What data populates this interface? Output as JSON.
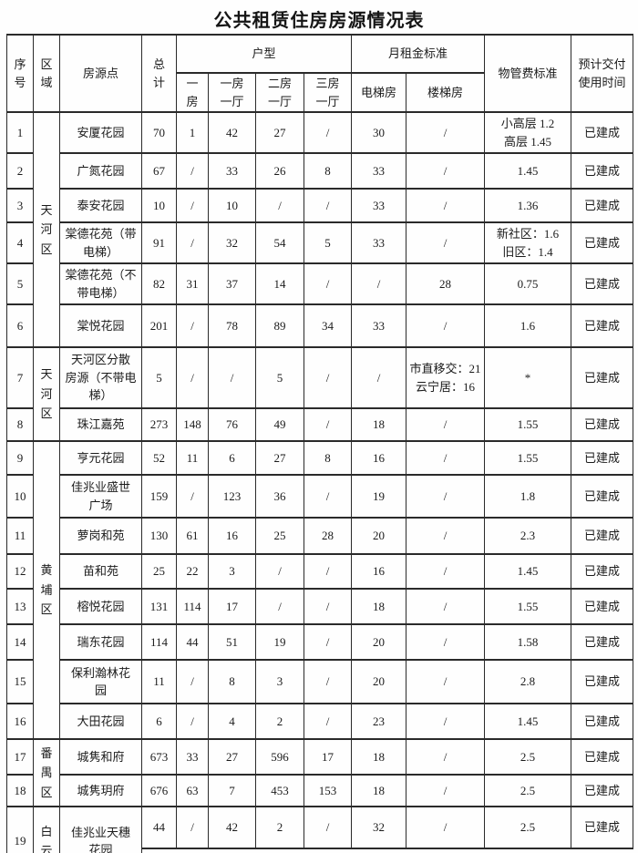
{
  "title": "公共租赁住房房源情况表",
  "table": {
    "headers": {
      "no": "序\n号",
      "district": "区\n域",
      "site": "房源点",
      "total": "总\n计",
      "unit_group": "户型",
      "unit_types": [
        "一\n房",
        "一房\n一厅",
        "二房\n一厅",
        "三房\n一厅"
      ],
      "rent_group": "月租金标准",
      "rent_types": [
        "电梯房",
        "楼梯房"
      ],
      "mgmt": "物管费标准",
      "delivery": "预计交付\n使用时间"
    },
    "district_blocks": [
      {
        "label": "天河区",
        "start": 0,
        "span": 6
      },
      {
        "label": "天河区",
        "start": 6,
        "span": 2
      },
      {
        "label": "黄埔区",
        "start": 8,
        "span": 8
      },
      {
        "label": "番禺区",
        "start": 16,
        "span": 2
      },
      {
        "label": "白云",
        "start": 18,
        "span": 1
      }
    ],
    "rows": [
      {
        "no": "1",
        "site": "安厦花园",
        "total": "70",
        "u1": "1",
        "u2": "42",
        "u3": "27",
        "u4": "/",
        "elev": "30",
        "stair": "/",
        "mgmt": "小高层 1.2\n高层 1.45",
        "delivery": "已建成"
      },
      {
        "no": "2",
        "site": "广氮花园",
        "total": "67",
        "u1": "/",
        "u2": "33",
        "u3": "26",
        "u4": "8",
        "elev": "33",
        "stair": "/",
        "mgmt": "1.45",
        "delivery": "已建成"
      },
      {
        "no": "3",
        "site": "泰安花园",
        "total": "10",
        "u1": "/",
        "u2": "10",
        "u3": "/",
        "u4": "/",
        "elev": "33",
        "stair": "/",
        "mgmt": "1.36",
        "delivery": "已建成"
      },
      {
        "no": "4",
        "site": "棠德花苑（带\n电梯）",
        "total": "91",
        "u1": "/",
        "u2": "32",
        "u3": "54",
        "u4": "5",
        "elev": "33",
        "stair": "/",
        "mgmt": "新社区：1.6\n旧区：1.4",
        "delivery": "已建成"
      },
      {
        "no": "5",
        "site": "棠德花苑（不\n带电梯）",
        "total": "82",
        "u1": "31",
        "u2": "37",
        "u3": "14",
        "u4": "/",
        "elev": "/",
        "stair": "28",
        "mgmt": "0.75",
        "delivery": "已建成"
      },
      {
        "no": "6",
        "site": "棠悦花园",
        "total": "201",
        "u1": "/",
        "u2": "78",
        "u3": "89",
        "u4": "34",
        "elev": "33",
        "stair": "/",
        "mgmt": "1.6",
        "delivery": "已建成"
      },
      {
        "no": "7",
        "site": "天河区分散\n房源（不带电\n梯）",
        "total": "5",
        "u1": "/",
        "u2": "/",
        "u3": "5",
        "u4": "/",
        "elev": "/",
        "stair": "市直移交：21\n云宁居：16",
        "mgmt": "*",
        "delivery": "已建成"
      },
      {
        "no": "8",
        "site": "珠江嘉苑",
        "total": "273",
        "u1": "148",
        "u2": "76",
        "u3": "49",
        "u4": "/",
        "elev": "18",
        "stair": "/",
        "mgmt": "1.55",
        "delivery": "已建成"
      },
      {
        "no": "9",
        "site": "亨元花园",
        "total": "52",
        "u1": "11",
        "u2": "6",
        "u3": "27",
        "u4": "8",
        "elev": "16",
        "stair": "/",
        "mgmt": "1.55",
        "delivery": "已建成"
      },
      {
        "no": "10",
        "site": "佳兆业盛世\n广场",
        "total": "159",
        "u1": "/",
        "u2": "123",
        "u3": "36",
        "u4": "/",
        "elev": "19",
        "stair": "/",
        "mgmt": "1.8",
        "delivery": "已建成"
      },
      {
        "no": "11",
        "site": "萝岗和苑",
        "total": "130",
        "u1": "61",
        "u2": "16",
        "u3": "25",
        "u4": "28",
        "elev": "20",
        "stair": "/",
        "mgmt": "2.3",
        "delivery": "已建成"
      },
      {
        "no": "12",
        "site": "苗和苑",
        "total": "25",
        "u1": "22",
        "u2": "3",
        "u3": "/",
        "u4": "/",
        "elev": "16",
        "stair": "/",
        "mgmt": "1.45",
        "delivery": "已建成"
      },
      {
        "no": "13",
        "site": "榕悦花园",
        "total": "131",
        "u1": "114",
        "u2": "17",
        "u3": "/",
        "u4": "/",
        "elev": "18",
        "stair": "/",
        "mgmt": "1.55",
        "delivery": "已建成"
      },
      {
        "no": "14",
        "site": "瑞东花园",
        "total": "114",
        "u1": "44",
        "u2": "51",
        "u3": "19",
        "u4": "/",
        "elev": "20",
        "stair": "/",
        "mgmt": "1.58",
        "delivery": "已建成"
      },
      {
        "no": "15",
        "site": "保利瀚林花\n园",
        "total": "11",
        "u1": "/",
        "u2": "8",
        "u3": "3",
        "u4": "/",
        "elev": "20",
        "stair": "/",
        "mgmt": "2.8",
        "delivery": "已建成"
      },
      {
        "no": "16",
        "site": "大田花园",
        "total": "6",
        "u1": "/",
        "u2": "4",
        "u3": "2",
        "u4": "/",
        "elev": "23",
        "stair": "/",
        "mgmt": "1.45",
        "delivery": "已建成"
      },
      {
        "no": "17",
        "site": "城隽和府",
        "total": "673",
        "u1": "33",
        "u2": "27",
        "u3": "596",
        "u4": "17",
        "elev": "18",
        "stair": "/",
        "mgmt": "2.5",
        "delivery": "已建成"
      },
      {
        "no": "18",
        "site": "城隽玥府",
        "total": "676",
        "u1": "63",
        "u2": "7",
        "u3": "453",
        "u4": "153",
        "elev": "18",
        "stair": "/",
        "mgmt": "2.5",
        "delivery": "已建成"
      },
      {
        "no": "19",
        "site": "佳兆业天穗\n花园",
        "total": "44",
        "u1": "/",
        "u2": "42",
        "u3": "2",
        "u4": "/",
        "elev": "32",
        "stair": "/",
        "mgmt": "2.5",
        "delivery": "已建成"
      }
    ]
  }
}
